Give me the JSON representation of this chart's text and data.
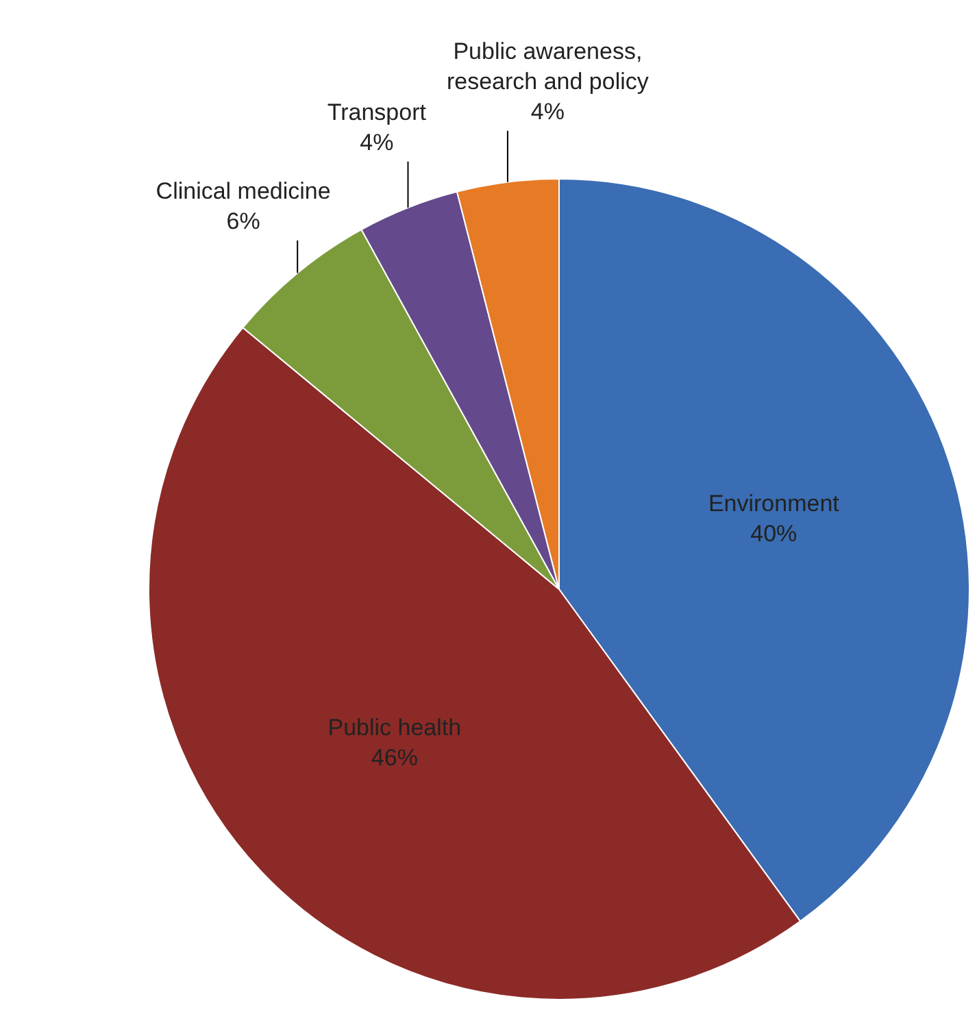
{
  "chart_data": {
    "type": "pie",
    "categories": [
      "Environment",
      "Public health",
      "Clinical medicine",
      "Transport",
      "Public awareness, research and policy"
    ],
    "values": [
      40,
      46,
      6,
      4,
      4
    ],
    "colors": [
      "#3a6db3",
      "#8c2a27",
      "#7c9c3c",
      "#644a8c",
      "#e67a25"
    ],
    "value_labels": [
      "40%",
      "46%",
      "6%",
      "4%",
      "4%"
    ]
  }
}
